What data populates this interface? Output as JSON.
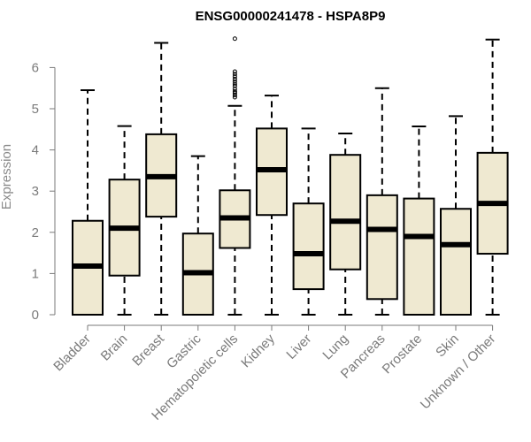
{
  "chart_data": {
    "type": "boxplot",
    "title": "ENSG00000241478 - HSPA8P9",
    "xlabel": "",
    "ylabel": "Expression",
    "ylim": [
      0,
      6.8
    ],
    "yticks": [
      0,
      1,
      2,
      3,
      4,
      5,
      6
    ],
    "grid": false,
    "box_fill": "#efe9d1",
    "box_stroke": "#000000",
    "categories": [
      "Bladder",
      "Brain",
      "Breast",
      "Gastric",
      "Hematopoietic cells",
      "Kidney",
      "Liver",
      "Lung",
      "Pancreas",
      "Prostate",
      "Skin",
      "Unknown / Other"
    ],
    "boxes": [
      {
        "min": 0.0,
        "q1": 0.0,
        "median": 1.18,
        "q3": 2.28,
        "max": 5.45,
        "outliers": []
      },
      {
        "min": 0.0,
        "q1": 0.95,
        "median": 2.1,
        "q3": 3.28,
        "max": 4.58,
        "outliers": []
      },
      {
        "min": 0.0,
        "q1": 2.38,
        "median": 3.35,
        "q3": 4.38,
        "max": 6.6,
        "outliers": []
      },
      {
        "min": 0.0,
        "q1": 0.0,
        "median": 1.02,
        "q3": 1.97,
        "max": 3.85,
        "outliers": []
      },
      {
        "min": 0.0,
        "q1": 1.62,
        "median": 2.35,
        "q3": 3.02,
        "max": 5.07,
        "outliers": [
          5.28,
          5.33,
          5.38,
          5.42,
          5.48,
          5.55,
          5.6,
          5.66,
          5.72,
          5.78,
          5.84,
          5.9,
          6.7
        ]
      },
      {
        "min": 0.0,
        "q1": 2.42,
        "median": 3.52,
        "q3": 4.52,
        "max": 5.32,
        "outliers": []
      },
      {
        "min": 0.0,
        "q1": 0.62,
        "median": 1.48,
        "q3": 2.7,
        "max": 4.52,
        "outliers": []
      },
      {
        "min": 0.0,
        "q1": 1.1,
        "median": 2.27,
        "q3": 3.88,
        "max": 4.4,
        "outliers": []
      },
      {
        "min": 0.0,
        "q1": 0.38,
        "median": 2.07,
        "q3": 2.9,
        "max": 5.5,
        "outliers": []
      },
      {
        "min": 0.0,
        "q1": 0.0,
        "median": 1.9,
        "q3": 2.82,
        "max": 4.57,
        "outliers": []
      },
      {
        "min": 0.0,
        "q1": 0.0,
        "median": 1.7,
        "q3": 2.57,
        "max": 4.82,
        "outliers": []
      },
      {
        "min": 0.0,
        "q1": 1.48,
        "median": 2.7,
        "q3": 3.93,
        "max": 6.68,
        "outliers": []
      }
    ]
  }
}
